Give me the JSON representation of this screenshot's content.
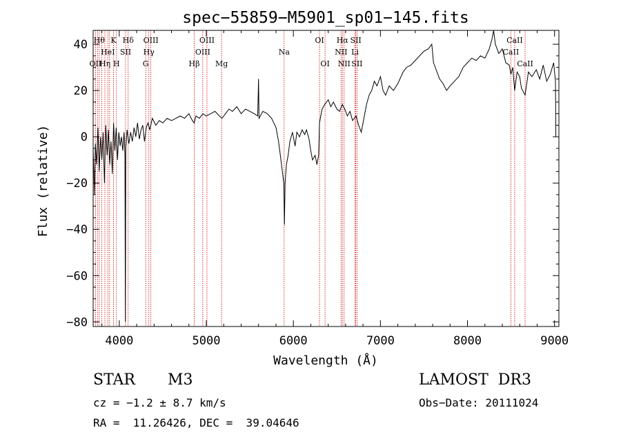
{
  "chart_data": {
    "type": "line",
    "title": "spec−55859−M5901_sp01−145.fits",
    "xlabel": "Wavelength (Å)",
    "ylabel": "Flux (relative)",
    "xlim": [
      3700,
      9050
    ],
    "ylim": [
      -82,
      46
    ],
    "xticks": [
      4000,
      5000,
      6000,
      7000,
      8000,
      9000
    ],
    "yticks": [
      -80,
      -60,
      -40,
      -20,
      0,
      20,
      40
    ],
    "tick_labels_x": [
      "4000",
      "5000",
      "6000",
      "7000",
      "8000",
      "9000"
    ],
    "tick_labels_y": [
      "−80",
      "−60",
      "−40",
      "−20",
      "0",
      "20",
      "40"
    ],
    "line_color": "#000000",
    "marker_color": "#cc0000",
    "series": [
      {
        "name": "flux",
        "points": [
          [
            3700,
            -5
          ],
          [
            3715,
            -25
          ],
          [
            3725,
            -3
          ],
          [
            3740,
            -12
          ],
          [
            3755,
            4
          ],
          [
            3770,
            -15
          ],
          [
            3785,
            0
          ],
          [
            3800,
            -10
          ],
          [
            3815,
            2
          ],
          [
            3830,
            -20
          ],
          [
            3845,
            5
          ],
          [
            3860,
            -8
          ],
          [
            3875,
            3
          ],
          [
            3890,
            -12
          ],
          [
            3905,
            -2
          ],
          [
            3920,
            -16
          ],
          [
            3935,
            6
          ],
          [
            3950,
            -6
          ],
          [
            3965,
            4
          ],
          [
            3980,
            -10
          ],
          [
            3995,
            2
          ],
          [
            4010,
            -4
          ],
          [
            4025,
            0
          ],
          [
            4040,
            -6
          ],
          [
            4055,
            2
          ],
          [
            4065,
            -8
          ],
          [
            4070,
            -80
          ],
          [
            4075,
            -5
          ],
          [
            4090,
            3
          ],
          [
            4110,
            -3
          ],
          [
            4130,
            2
          ],
          [
            4150,
            -2
          ],
          [
            4170,
            4
          ],
          [
            4190,
            0
          ],
          [
            4210,
            6
          ],
          [
            4230,
            -1
          ],
          [
            4250,
            3
          ],
          [
            4270,
            5
          ],
          [
            4290,
            -2
          ],
          [
            4310,
            4
          ],
          [
            4330,
            6
          ],
          [
            4350,
            3
          ],
          [
            4380,
            8
          ],
          [
            4420,
            5
          ],
          [
            4460,
            7
          ],
          [
            4500,
            6
          ],
          [
            4550,
            8
          ],
          [
            4600,
            7
          ],
          [
            4650,
            8
          ],
          [
            4700,
            9
          ],
          [
            4750,
            8
          ],
          [
            4800,
            10
          ],
          [
            4840,
            7
          ],
          [
            4861,
            6
          ],
          [
            4880,
            9
          ],
          [
            4920,
            8
          ],
          [
            4960,
            10
          ],
          [
            5000,
            9
          ],
          [
            5050,
            10
          ],
          [
            5100,
            11
          ],
          [
            5150,
            9
          ],
          [
            5180,
            8
          ],
          [
            5220,
            10
          ],
          [
            5260,
            12
          ],
          [
            5300,
            11
          ],
          [
            5350,
            13
          ],
          [
            5400,
            10
          ],
          [
            5450,
            12
          ],
          [
            5500,
            11
          ],
          [
            5550,
            10
          ],
          [
            5590,
            9
          ],
          [
            5600,
            25
          ],
          [
            5605,
            8
          ],
          [
            5650,
            11
          ],
          [
            5700,
            10
          ],
          [
            5750,
            8
          ],
          [
            5800,
            4
          ],
          [
            5830,
            -2
          ],
          [
            5850,
            -8
          ],
          [
            5870,
            -14
          ],
          [
            5890,
            -20
          ],
          [
            5897,
            -38
          ],
          [
            5905,
            -20
          ],
          [
            5920,
            -12
          ],
          [
            5940,
            -8
          ],
          [
            5960,
            -2
          ],
          [
            5990,
            2
          ],
          [
            6020,
            -4
          ],
          [
            6040,
            2
          ],
          [
            6070,
            0
          ],
          [
            6100,
            3
          ],
          [
            6130,
            1
          ],
          [
            6150,
            3
          ],
          [
            6180,
            -1
          ],
          [
            6200,
            -6
          ],
          [
            6220,
            -10
          ],
          [
            6250,
            -8
          ],
          [
            6270,
            -12
          ],
          [
            6290,
            -8
          ],
          [
            6300,
            6
          ],
          [
            6330,
            12
          ],
          [
            6360,
            14
          ],
          [
            6400,
            16
          ],
          [
            6430,
            13
          ],
          [
            6460,
            15
          ],
          [
            6500,
            12
          ],
          [
            6530,
            11
          ],
          [
            6562,
            14
          ],
          [
            6590,
            12
          ],
          [
            6620,
            9
          ],
          [
            6650,
            11
          ],
          [
            6680,
            7
          ],
          [
            6720,
            9
          ],
          [
            6750,
            5
          ],
          [
            6780,
            2
          ],
          [
            6810,
            8
          ],
          [
            6840,
            14
          ],
          [
            6870,
            18
          ],
          [
            6900,
            20
          ],
          [
            6930,
            24
          ],
          [
            6960,
            22
          ],
          [
            7000,
            26
          ],
          [
            7030,
            20
          ],
          [
            7060,
            18
          ],
          [
            7100,
            22
          ],
          [
            7150,
            20
          ],
          [
            7200,
            23
          ],
          [
            7260,
            28
          ],
          [
            7300,
            30
          ],
          [
            7350,
            31
          ],
          [
            7400,
            33
          ],
          [
            7450,
            35
          ],
          [
            7500,
            37
          ],
          [
            7550,
            38
          ],
          [
            7590,
            40
          ],
          [
            7610,
            32
          ],
          [
            7640,
            29
          ],
          [
            7680,
            25
          ],
          [
            7720,
            23
          ],
          [
            7760,
            20
          ],
          [
            7800,
            22
          ],
          [
            7850,
            24
          ],
          [
            7900,
            26
          ],
          [
            7950,
            30
          ],
          [
            8000,
            32
          ],
          [
            8050,
            34
          ],
          [
            8100,
            33
          ],
          [
            8150,
            35
          ],
          [
            8200,
            34
          ],
          [
            8250,
            38
          ],
          [
            8280,
            42
          ],
          [
            8300,
            46
          ],
          [
            8320,
            40
          ],
          [
            8360,
            36
          ],
          [
            8400,
            38
          ],
          [
            8440,
            32
          ],
          [
            8480,
            31
          ],
          [
            8498,
            27
          ],
          [
            8520,
            30
          ],
          [
            8542,
            20
          ],
          [
            8570,
            28
          ],
          [
            8600,
            26
          ],
          [
            8620,
            21
          ],
          [
            8662,
            18
          ],
          [
            8700,
            28
          ],
          [
            8740,
            26
          ],
          [
            8790,
            29
          ],
          [
            8830,
            25
          ],
          [
            8870,
            31
          ],
          [
            8910,
            24
          ],
          [
            8950,
            27
          ],
          [
            8990,
            32
          ],
          [
            9010,
            24
          ],
          [
            9015,
            0
          ]
        ]
      }
    ],
    "lines": [
      {
        "w": 3727,
        "label": "OII",
        "row": 2
      },
      {
        "w": 3750,
        "label": "",
        "row": 0
      },
      {
        "w": 3770,
        "label": "Hθ",
        "row": 0
      },
      {
        "w": 3798,
        "label": "",
        "row": 0
      },
      {
        "w": 3835,
        "label": "Hη",
        "row": 2
      },
      {
        "w": 3869,
        "label": "HeI",
        "row": 1
      },
      {
        "w": 3889,
        "label": "",
        "row": 0
      },
      {
        "w": 3934,
        "label": "K",
        "row": 0
      },
      {
        "w": 3968,
        "label": "H",
        "row": 2
      },
      {
        "w": 4072,
        "label": "SII",
        "row": 1
      },
      {
        "w": 4102,
        "label": "Hδ",
        "row": 0
      },
      {
        "w": 4304,
        "label": "G",
        "row": 2
      },
      {
        "w": 4340,
        "label": "Hγ",
        "row": 1
      },
      {
        "w": 4363,
        "label": "OIII",
        "row": 0
      },
      {
        "w": 4861,
        "label": "Hβ",
        "row": 2
      },
      {
        "w": 4959,
        "label": "OIII",
        "row": 1
      },
      {
        "w": 5007,
        "label": "OIII",
        "row": 0
      },
      {
        "w": 5175,
        "label": "Mg",
        "row": 2
      },
      {
        "w": 5894,
        "label": "Na",
        "row": 1
      },
      {
        "w": 6300,
        "label": "OI",
        "row": 0
      },
      {
        "w": 6364,
        "label": "OI",
        "row": 2
      },
      {
        "w": 6548,
        "label": "NII",
        "row": 1
      },
      {
        "w": 6563,
        "label": "Hα",
        "row": 0
      },
      {
        "w": 6583,
        "label": "NII",
        "row": 2
      },
      {
        "w": 6708,
        "label": "Li",
        "row": 1
      },
      {
        "w": 6717,
        "label": "SII",
        "row": 0
      },
      {
        "w": 6731,
        "label": "SII",
        "row": 2
      },
      {
        "w": 8498,
        "label": "CaII",
        "row": 1
      },
      {
        "w": 8542,
        "label": "CaII",
        "row": 0
      },
      {
        "w": 8662,
        "label": "CaII",
        "row": 2
      }
    ]
  },
  "footer": {
    "object_type": "STAR",
    "subclass": "M3",
    "survey": "LAMOST  DR3",
    "redshift": "cz = −1.2 ± 8.7 km/s",
    "obs_date": "Obs−Date: 20111024",
    "coords": "RA =  11.26426, DEC =  39.04646"
  }
}
